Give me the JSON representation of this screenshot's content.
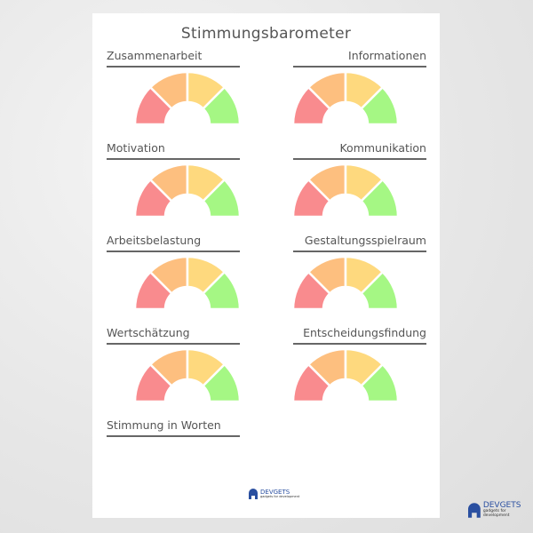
{
  "title": "Stimmungsbarometer",
  "sections": [
    {
      "label": "Zusammenarbeit",
      "col": "left"
    },
    {
      "label": "Informationen",
      "col": "right"
    },
    {
      "label": "Motivation",
      "col": "left"
    },
    {
      "label": "Kommunikation",
      "col": "right"
    },
    {
      "label": "Arbeitsbelastung",
      "col": "left"
    },
    {
      "label": "Gestaltungsspielraum",
      "col": "right"
    },
    {
      "label": "Wertschätzung",
      "col": "left"
    },
    {
      "label": "Entscheidungsfindung",
      "col": "right"
    },
    {
      "label": "Stimmung in Worten",
      "col": "left",
      "no_gauge": true
    }
  ],
  "gauge_colors": [
    "#f98b8e",
    "#fdbf7f",
    "#fed97e",
    "#a5f784"
  ],
  "logo": {
    "name": "DEVGETS",
    "tagline": "gadgets for development",
    "color": "#2a4fa0"
  }
}
